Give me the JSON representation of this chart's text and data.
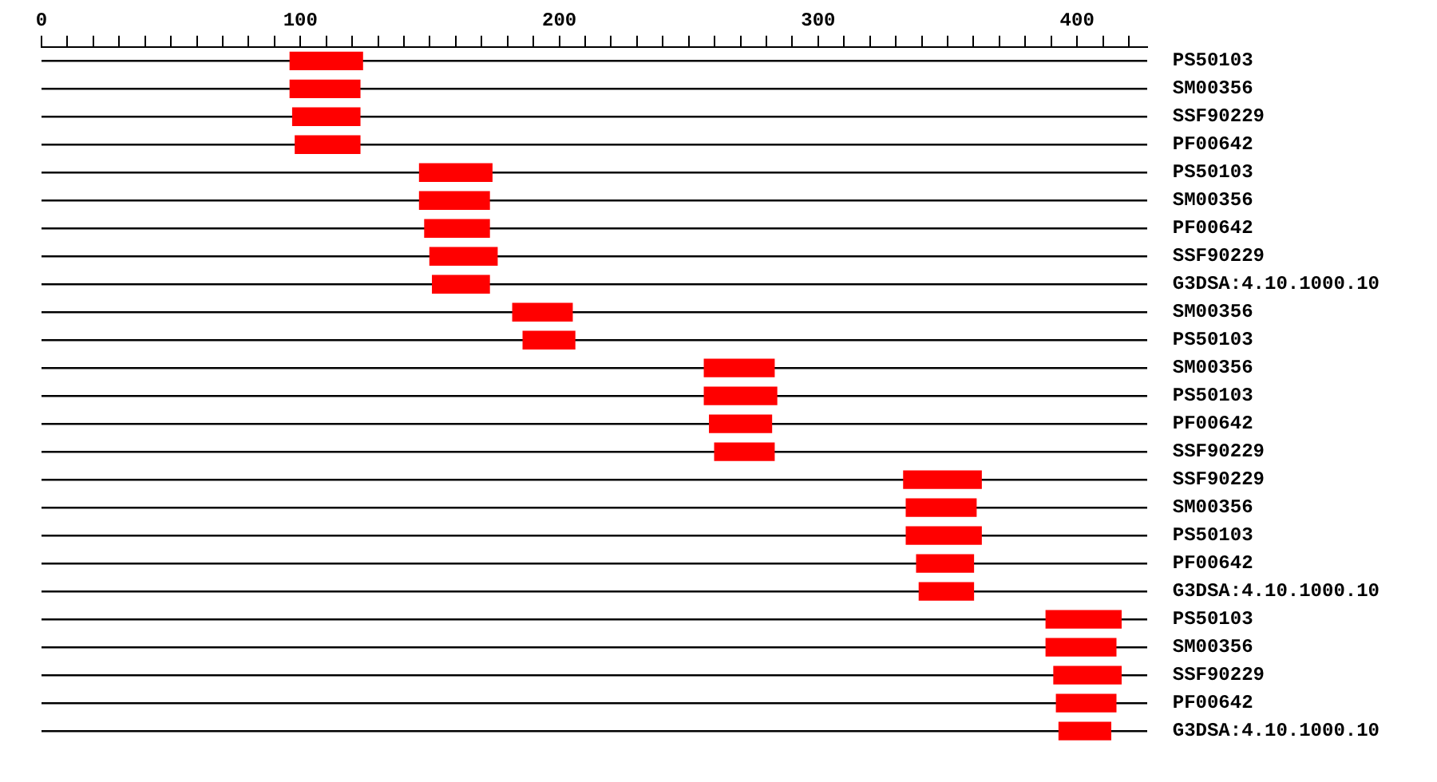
{
  "chart_data": {
    "type": "bar",
    "orientation": "horizontal",
    "color": "#ff0000",
    "categories": [
      "PS50103",
      "SM00356",
      "SSF90229",
      "PF00642",
      "PS50103",
      "SM00356",
      "PF00642",
      "SSF90229",
      "G3DSA:4.10.1000.10",
      "SM00356",
      "PS50103",
      "SM00356",
      "PS50103",
      "PF00642",
      "SSF90229",
      "SSF90229",
      "SM00356",
      "PS50103",
      "PF00642",
      "G3DSA:4.10.1000.10",
      "PS50103",
      "SM00356",
      "SSF90229",
      "PF00642",
      "G3DSA:4.10.1000.10"
    ],
    "base": [
      96,
      96,
      97,
      98,
      146,
      146,
      148,
      150,
      151,
      182,
      186,
      256,
      256,
      258,
      260,
      333,
      334,
      334,
      338,
      339,
      388,
      388,
      391,
      392,
      393
    ],
    "values": [
      28,
      27,
      26,
      25,
      28,
      27,
      25,
      26,
      22,
      23,
      20,
      27,
      28,
      24,
      23,
      30,
      27,
      29,
      22,
      21,
      29,
      27,
      26,
      23,
      20
    ],
    "xlim": [
      0,
      427
    ],
    "xticks": [
      0,
      {
        "value": 10,
        "label": null
      },
      {
        "value": 20,
        "label": null
      },
      {
        "value": 30,
        "label": null
      },
      {
        "value": 40,
        "label": null
      },
      {
        "value": 50,
        "label": null
      },
      {
        "value": 60,
        "label": null
      },
      {
        "value": 70,
        "label": null
      },
      {
        "value": 80,
        "label": null
      },
      {
        "value": 90,
        "label": null
      },
      100,
      {
        "value": 110,
        "label": null
      },
      {
        "value": 120,
        "label": null
      },
      {
        "value": 130,
        "label": null
      },
      {
        "value": 140,
        "label": null
      },
      {
        "value": 150,
        "label": null
      },
      {
        "value": 160,
        "label": null
      },
      {
        "value": 170,
        "label": null
      },
      {
        "value": 180,
        "label": null
      },
      {
        "value": 190,
        "label": null
      },
      200,
      {
        "value": 210,
        "label": null
      },
      {
        "value": 220,
        "label": null
      },
      {
        "value": 230,
        "label": null
      },
      {
        "value": 240,
        "label": null
      },
      {
        "value": 250,
        "label": null
      },
      {
        "value": 260,
        "label": null
      },
      {
        "value": 270,
        "label": null
      },
      {
        "value": 280,
        "label": null
      },
      {
        "value": 290,
        "label": null
      },
      300,
      {
        "value": 310,
        "label": null
      },
      {
        "value": 320,
        "label": null
      },
      {
        "value": 330,
        "label": null
      },
      {
        "value": 340,
        "label": null
      },
      {
        "value": 350,
        "label": null
      },
      {
        "value": 360,
        "label": null
      },
      {
        "value": 370,
        "label": null
      },
      {
        "value": 380,
        "label": null
      },
      {
        "value": 390,
        "label": null
      },
      400,
      {
        "value": 410,
        "label": null
      },
      {
        "value": 420,
        "label": null
      }
    ],
    "grid": "y",
    "legend": false
  }
}
